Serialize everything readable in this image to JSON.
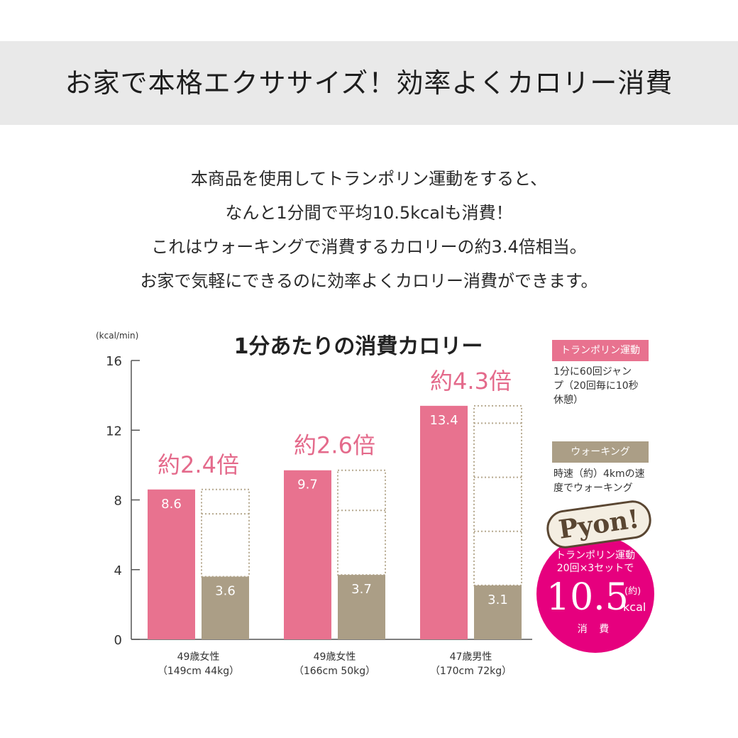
{
  "banner": {
    "title": "お家で本格エクササイズ！効率よくカロリー消費"
  },
  "intro": [
    "本商品を使用してトランポリン運動をすると、",
    "なんと1分間で平均10.5kcalも消費！",
    "これはウォーキングで消費するカロリーの約3.4倍相当。",
    "お家で気軽にできるのに効率よくカロリー消費ができます。"
  ],
  "chart_data": {
    "type": "bar",
    "title": "1分あたりの消費カロリー",
    "ylabel": "(kcal/min)",
    "ylim": [
      0,
      16
    ],
    "yticks": [
      0,
      4,
      8,
      12,
      16
    ],
    "categories": [
      {
        "line1": "49歳女性",
        "line2": "（149cm 44kg）"
      },
      {
        "line1": "49歳女性",
        "line2": "（166cm 50kg）"
      },
      {
        "line1": "47歳男性",
        "line2": "（170cm 72kg）"
      }
    ],
    "series": [
      {
        "name": "トランポリン運動",
        "color": "#e8728f",
        "values": [
          8.6,
          9.7,
          13.4
        ],
        "labels": [
          "8.6",
          "9.7",
          "13.4"
        ]
      },
      {
        "name": "ウォーキング",
        "color": "#ab9e86",
        "values": [
          3.6,
          3.7,
          3.1
        ],
        "labels": [
          "3.6",
          "3.7",
          "3.1"
        ]
      }
    ],
    "ratio_labels": [
      "約2.4倍",
      "約2.6倍",
      "約4.3倍"
    ],
    "ratio_color": "#e46a8b"
  },
  "legend": {
    "trampoline": {
      "tag": "トランポリン運動",
      "desc": [
        "1分に60回ジャン",
        "プ（20回毎に10秒",
        "休憩）"
      ],
      "color": "#e8728f"
    },
    "walking": {
      "tag": "ウォーキング",
      "desc": [
        "時速（約）4kmの速",
        "度でウォーキング"
      ],
      "color": "#ab9e86"
    }
  },
  "badge": {
    "pyon": "Pyon!",
    "line1": "トランポリン運動",
    "line2": "20回×3セットで",
    "value": "10.5",
    "paren": "(約)",
    "unit": "kcal",
    "footer": "消 費",
    "color": "#e6007e"
  }
}
